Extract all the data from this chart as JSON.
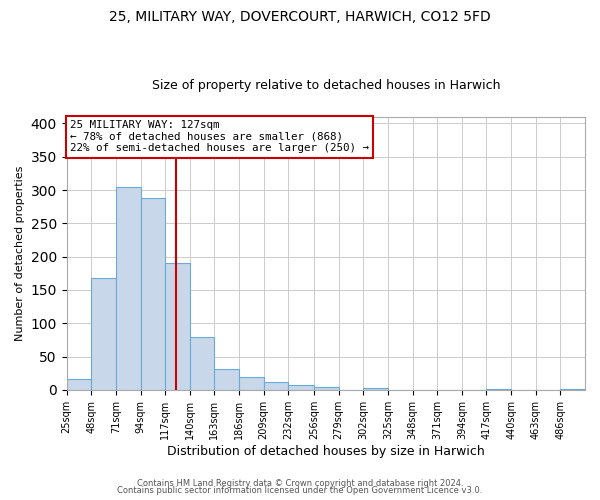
{
  "title": "25, MILITARY WAY, DOVERCOURT, HARWICH, CO12 5FD",
  "subtitle": "Size of property relative to detached houses in Harwich",
  "xlabel": "Distribution of detached houses by size in Harwich",
  "ylabel": "Number of detached properties",
  "bar_labels": [
    "25sqm",
    "48sqm",
    "71sqm",
    "94sqm",
    "117sqm",
    "140sqm",
    "163sqm",
    "186sqm",
    "209sqm",
    "232sqm",
    "256sqm",
    "279sqm",
    "302sqm",
    "325sqm",
    "348sqm",
    "371sqm",
    "394sqm",
    "417sqm",
    "440sqm",
    "463sqm",
    "486sqm"
  ],
  "bar_values": [
    16,
    168,
    305,
    288,
    190,
    79,
    31,
    19,
    12,
    8,
    5,
    0,
    3,
    0,
    0,
    0,
    0,
    2,
    0,
    0,
    2
  ],
  "bar_color": "#c8d8ea",
  "bar_edgecolor": "#6aaad4",
  "x_bin_edges": [
    25,
    48,
    71,
    94,
    117,
    140,
    163,
    186,
    209,
    232,
    256,
    279,
    302,
    325,
    348,
    371,
    394,
    417,
    440,
    463,
    486,
    509
  ],
  "vline_x": 127,
  "vline_color": "#cc0000",
  "box_text_line1": "25 MILITARY WAY: 127sqm",
  "box_text_line2": "← 78% of detached houses are smaller (868)",
  "box_text_line3": "22% of semi-detached houses are larger (250) →",
  "box_facecolor": "#ffffff",
  "box_edgecolor": "#cc0000",
  "ylim": [
    0,
    410
  ],
  "footnote1": "Contains HM Land Registry data © Crown copyright and database right 2024.",
  "footnote2": "Contains public sector information licensed under the Open Government Licence v3.0.",
  "bg_color": "#ffffff",
  "plot_bg_color": "#ffffff",
  "grid_color": "#cccccc"
}
